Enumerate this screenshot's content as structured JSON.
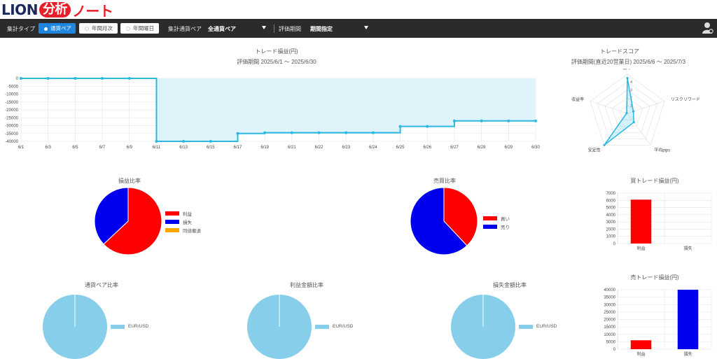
{
  "logo": {
    "part1": "LION",
    "part2": "分析",
    "part3": "ノート"
  },
  "toolbar": {
    "agg_type_label": "集計タイプ",
    "agg_options": [
      "通貨ペア",
      "年間月次",
      "年間曜日"
    ],
    "pair_label": "集計通貨ペア",
    "pair_value": "全通貨ペア",
    "period_label": "評価期間",
    "period_value": "期間指定"
  },
  "trade_pl": {
    "title": "トレード損益(円)",
    "period": "評価期間 2025/6/1 ～ 2025/6/30"
  },
  "score": {
    "title": "トレードスコア",
    "period": "評価期間(直近20営業日) 2025/6/6 ～ 2025/7/3",
    "axes": [
      "勝率",
      "リスクリワード",
      "平均pips",
      "安定性",
      "収益率"
    ],
    "ticks": [
      "1",
      "2",
      "3",
      "4"
    ]
  },
  "pl_ratio": {
    "title": "損益比率",
    "legend": [
      "利益",
      "損失",
      "同値撤退"
    ]
  },
  "buysell_ratio": {
    "title": "売買比率",
    "legend": [
      "買い",
      "売り"
    ]
  },
  "buy_pl": {
    "title": "買トレード損益(円)"
  },
  "pair_ratio": {
    "title": "通貨ペア比率",
    "legend": [
      "EUR/USD"
    ]
  },
  "profit_ratio": {
    "title": "利益金額比率",
    "legend": [
      "EUR/USD"
    ]
  },
  "loss_ratio": {
    "title": "損失金額比率",
    "legend": [
      "EUR/USD"
    ]
  },
  "sell_pl": {
    "title": "売トレード損益(円)"
  },
  "colors": {
    "line": "#2bb8e3",
    "fill": "#dff3fb",
    "red": "#ff0000",
    "blue": "#0000ee",
    "orange": "#ffa500",
    "lightblue": "#87ceeb"
  },
  "chart_data": [
    {
      "type": "area",
      "title": "トレード損益(円)",
      "x": [
        "6/1",
        "6/3",
        "6/5",
        "6/7",
        "6/9",
        "6/11",
        "6/13",
        "6/15",
        "6/17",
        "6/19",
        "6/21",
        "6/22",
        "6/23",
        "6/24",
        "6/25",
        "6/26",
        "6/27",
        "6/28",
        "6/29",
        "6/30"
      ],
      "values": [
        0,
        0,
        0,
        0,
        0,
        -40000,
        -40000,
        -40000,
        -35000,
        -34500,
        -34500,
        -34500,
        -34500,
        -34500,
        -30500,
        -30500,
        -27000,
        -27000,
        -27000,
        -27000
      ],
      "ylim": [
        -40000,
        0
      ],
      "yticks": [
        0,
        -5000,
        -10000,
        -15000,
        -20000,
        -25000,
        -30000,
        -35000,
        -40000
      ],
      "grid": true
    },
    {
      "type": "radar",
      "title": "トレードスコア",
      "categories": [
        "勝率",
        "リスクリワード",
        "平均pips",
        "安定性",
        "収益率"
      ],
      "values": [
        4.5,
        0.8,
        1.4,
        5,
        0.1
      ],
      "ylim": [
        0,
        5
      ]
    },
    {
      "type": "pie",
      "title": "損益比率",
      "categories": [
        "利益",
        "損失",
        "同値撤退"
      ],
      "values": [
        63,
        37,
        0
      ]
    },
    {
      "type": "pie",
      "title": "売買比率",
      "categories": [
        "買い",
        "売り"
      ],
      "values": [
        38,
        62
      ]
    },
    {
      "type": "bar",
      "title": "買トレード損益(円)",
      "categories": [
        "利益",
        "損失"
      ],
      "values": [
        6100,
        0
      ],
      "ylim": [
        0,
        7000
      ],
      "yticks": [
        0,
        1000,
        2000,
        3000,
        4000,
        5000,
        6000,
        7000
      ]
    },
    {
      "type": "pie",
      "title": "通貨ペア比率",
      "categories": [
        "EUR/USD"
      ],
      "values": [
        100
      ]
    },
    {
      "type": "pie",
      "title": "利益金額比率",
      "categories": [
        "EUR/USD"
      ],
      "values": [
        100
      ]
    },
    {
      "type": "pie",
      "title": "損失金額比率",
      "categories": [
        "EUR/USD"
      ],
      "values": [
        100
      ]
    },
    {
      "type": "bar",
      "title": "売トレード損益(円)",
      "categories": [
        "利益",
        "損失"
      ],
      "values": [
        6000,
        40000
      ],
      "ylim": [
        0,
        40000
      ],
      "yticks": [
        0,
        5000,
        10000,
        15000,
        20000,
        25000,
        30000,
        35000,
        40000
      ]
    }
  ]
}
